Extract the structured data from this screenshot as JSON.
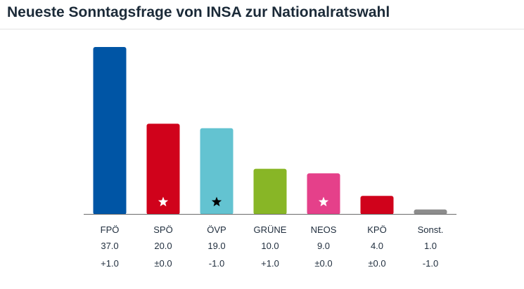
{
  "title": "Neueste Sonntagsfrage von INSA zur Nationalratswahl",
  "chart_data": {
    "type": "bar",
    "title": "Neueste Sonntagsfrage von INSA zur Nationalratswahl",
    "categories": [
      "FPÖ",
      "SPÖ",
      "ÖVP",
      "GRÜNE",
      "NEOS",
      "KPÖ",
      "Sonst."
    ],
    "values": [
      37.0,
      20.0,
      19.0,
      10.0,
      9.0,
      4.0,
      1.0
    ],
    "value_labels": [
      "37.0",
      "20.0",
      "19.0",
      "10.0",
      "9.0",
      "4.0",
      "1.0"
    ],
    "change_labels": [
      "+1.0",
      "±0.0",
      "-1.0",
      "+1.0",
      "±0.0",
      "±0.0",
      "-1.0"
    ],
    "colors": [
      "#0055a5",
      "#d0021b",
      "#63c3d1",
      "#88b626",
      "#e5408a",
      "#d0021b",
      "#8c8c8c"
    ],
    "markers": [
      {
        "category": "SPÖ",
        "icon": "star-icon",
        "color": "#ffffff"
      },
      {
        "category": "ÖVP",
        "icon": "star-icon",
        "color": "#000000"
      },
      {
        "category": "NEOS",
        "icon": "star-icon",
        "color": "#ffffff"
      }
    ],
    "ylim": [
      0,
      37.0
    ],
    "grid": false,
    "legend": "none",
    "xlabel": "",
    "ylabel": ""
  }
}
